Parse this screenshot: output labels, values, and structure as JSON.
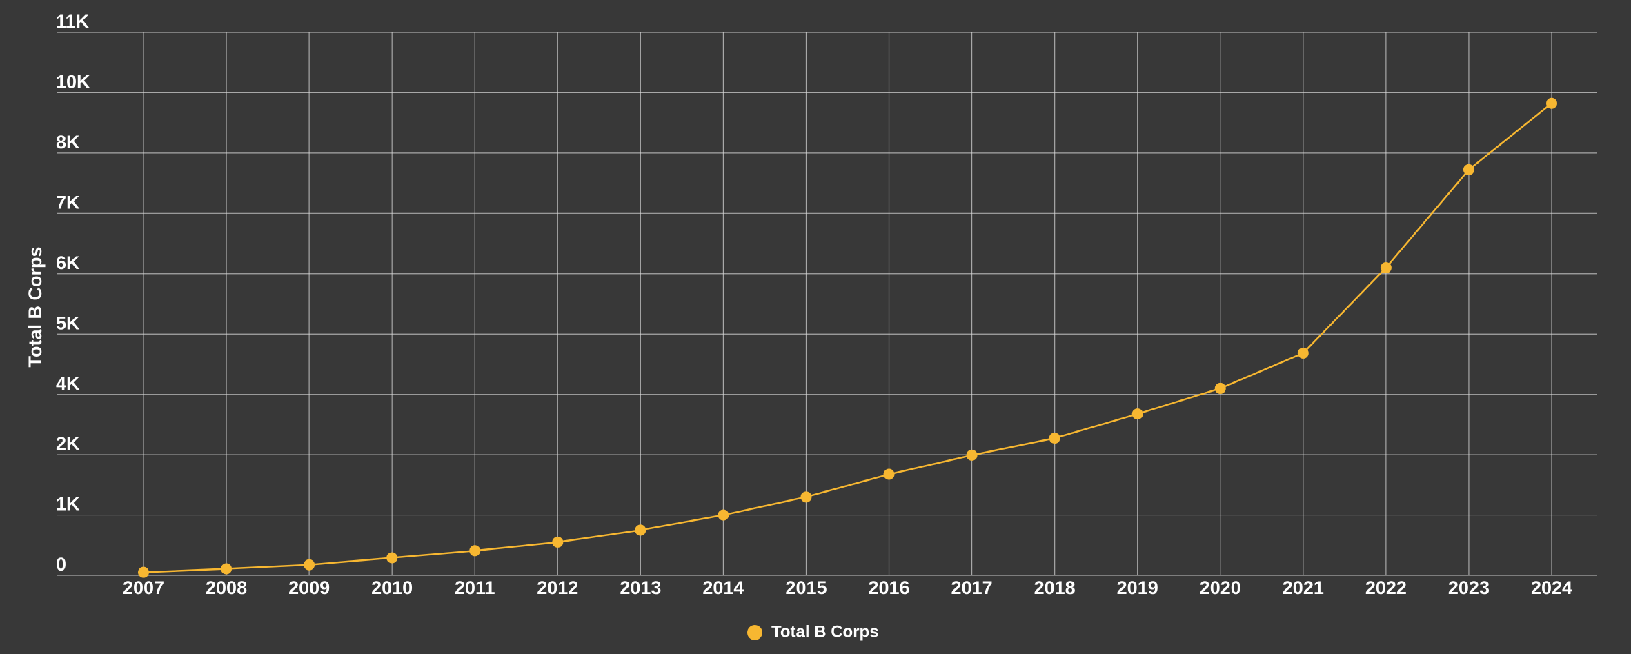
{
  "chart_data": {
    "type": "line",
    "y_label": "Total B Corps",
    "categories": [
      "2007",
      "2008",
      "2009",
      "2010",
      "2011",
      "2012",
      "2013",
      "2014",
      "2015",
      "2016",
      "2017",
      "2018",
      "2019",
      "2020",
      "2021",
      "2022",
      "2023",
      "2024"
    ],
    "series": [
      {
        "name": "Total B Corps",
        "color": "#f7b731",
        "values": [
          60,
          130,
          210,
          350,
          490,
          660,
          900,
          1200,
          1560,
          2010,
          2390,
          2730,
          3210,
          3720,
          4420,
          6120,
          8070,
          9390
        ]
      }
    ],
    "ylim": [
      0,
      10800
    ],
    "yticks": [
      0,
      {
        "value": 1200,
        "label": "1K"
      },
      {
        "value": 2400,
        "label": "2K"
      },
      {
        "value": 3600,
        "label": "4K"
      },
      {
        "value": 4800,
        "label": "5K"
      },
      {
        "value": 6000,
        "label": "6K"
      },
      {
        "value": 7200,
        "label": "7K"
      },
      {
        "value": 8400,
        "label": "8K"
      },
      {
        "value": 9600,
        "label": "10K"
      },
      {
        "value": 10800,
        "label": "11K"
      }
    ],
    "grid": true
  }
}
